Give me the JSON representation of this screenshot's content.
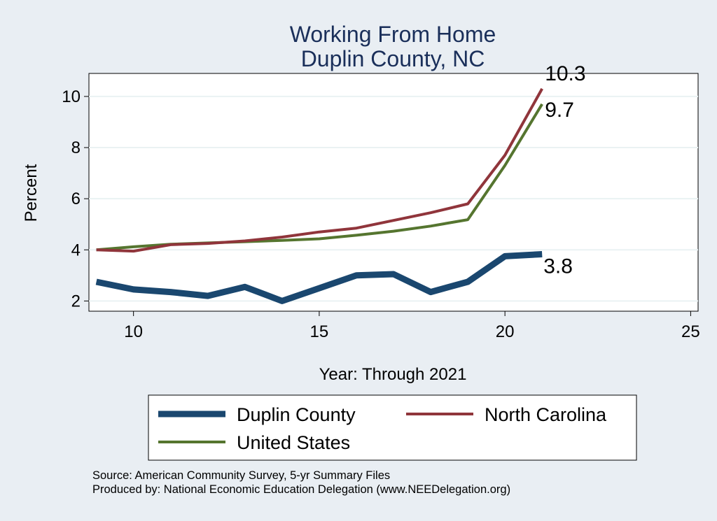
{
  "chart_data": {
    "type": "line",
    "title": [
      "Working From Home",
      "Duplin County, NC"
    ],
    "xlabel": "Year: Through 2021",
    "ylabel": "Percent",
    "xlim": [
      8.8,
      25.2
    ],
    "ylim": [
      1.6,
      10.9
    ],
    "xticks": [
      10,
      15,
      20,
      25
    ],
    "yticks": [
      2,
      4,
      6,
      8,
      10
    ],
    "grid": "horizontal",
    "legend_position": "bottom",
    "series": [
      {
        "name": "Duplin County",
        "color": "#1a476f",
        "x": [
          9,
          10,
          11,
          12,
          13,
          14,
          15,
          16,
          17,
          18,
          19,
          20,
          21
        ],
        "values": [
          2.75,
          2.45,
          2.35,
          2.2,
          2.55,
          2.0,
          2.5,
          3.0,
          3.05,
          2.35,
          2.75,
          3.75,
          3.83
        ],
        "end_label": "3.8"
      },
      {
        "name": "North Carolina",
        "color": "#90353b",
        "x": [
          9,
          10,
          11,
          12,
          13,
          14,
          15,
          16,
          17,
          18,
          19,
          20,
          21
        ],
        "values": [
          4.0,
          3.95,
          4.2,
          4.25,
          4.35,
          4.5,
          4.7,
          4.85,
          5.15,
          5.45,
          5.8,
          7.7,
          10.3
        ],
        "end_label": "10.3"
      },
      {
        "name": "United States",
        "color": "#55752f",
        "x": [
          9,
          10,
          11,
          12,
          13,
          14,
          15,
          16,
          17,
          18,
          19,
          20,
          21
        ],
        "values": [
          4.0,
          4.12,
          4.22,
          4.27,
          4.32,
          4.37,
          4.43,
          4.57,
          4.73,
          4.93,
          5.18,
          7.3,
          9.7
        ],
        "end_label": "9.7"
      }
    ]
  },
  "notes": {
    "source": "Source: American Community Survey, 5-yr Summary Files",
    "produced_by": "Produced by: National Economic Education Delegation (www.NEEDelegation.org)"
  }
}
